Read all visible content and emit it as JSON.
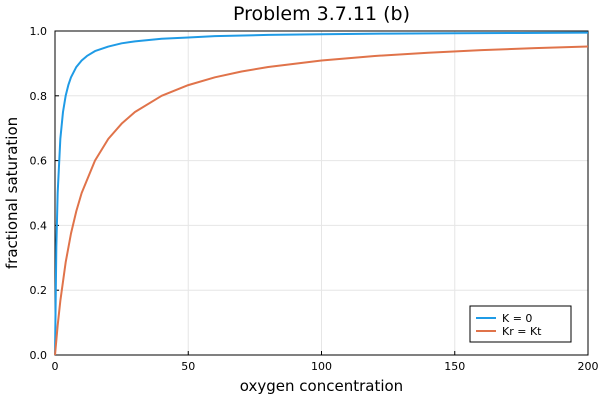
{
  "chart_data": {
    "type": "line",
    "title": "Problem 3.7.11 (b)",
    "xlabel": "oxygen concentration",
    "ylabel": "fractional saturation",
    "xlim": [
      0,
      200
    ],
    "ylim": [
      0,
      1
    ],
    "x_ticks": [
      "0",
      "50",
      "100",
      "150",
      "200"
    ],
    "y_ticks": [
      "0.0",
      "0.2",
      "0.4",
      "0.6",
      "0.8",
      "1.0"
    ],
    "grid": true,
    "legend_position": "bottom-right",
    "series": [
      {
        "name": "K = 0",
        "color": "#1f9be6",
        "x": [
          0,
          0.5,
          1,
          2,
          3,
          4,
          5,
          6,
          8,
          10,
          12,
          15,
          20,
          25,
          30,
          40,
          50,
          60,
          80,
          100,
          125,
          150,
          175,
          200
        ],
        "y": [
          0,
          0.333,
          0.5,
          0.667,
          0.75,
          0.8,
          0.833,
          0.857,
          0.889,
          0.909,
          0.923,
          0.938,
          0.952,
          0.962,
          0.968,
          0.976,
          0.98,
          0.984,
          0.988,
          0.99,
          0.992,
          0.993,
          0.994,
          0.995
        ]
      },
      {
        "name": "Kr = Kt",
        "color": "#e0734a",
        "x": [
          0,
          1,
          2,
          4,
          6,
          8,
          10,
          15,
          20,
          25,
          30,
          40,
          50,
          60,
          70,
          80,
          100,
          120,
          140,
          160,
          180,
          200
        ],
        "y": [
          0,
          0.091,
          0.167,
          0.286,
          0.375,
          0.444,
          0.5,
          0.6,
          0.667,
          0.714,
          0.75,
          0.8,
          0.833,
          0.857,
          0.875,
          0.889,
          0.909,
          0.923,
          0.933,
          0.941,
          0.947,
          0.952
        ]
      }
    ]
  }
}
